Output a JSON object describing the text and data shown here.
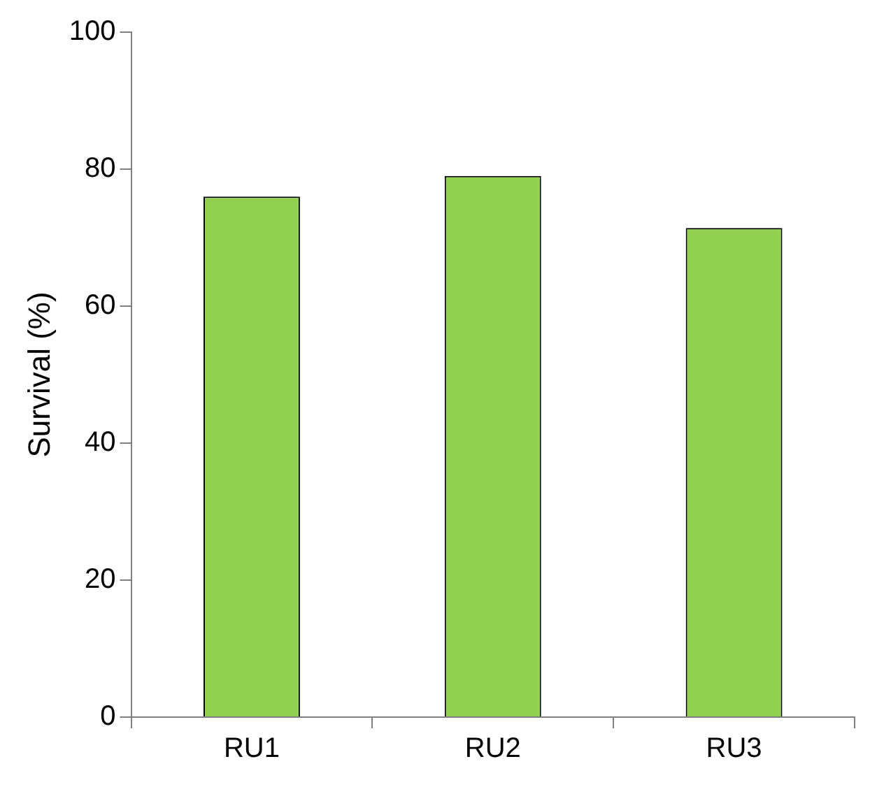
{
  "chart_data": {
    "type": "bar",
    "ylabel": "Survival (%)",
    "categories": [
      "RU1",
      "RU2",
      "RU3"
    ],
    "values": [
      76,
      79,
      71.4
    ],
    "color": "#92d050",
    "ylim": [
      0,
      100
    ],
    "yticks": [
      0,
      20,
      40,
      60,
      80,
      100
    ],
    "grid": false,
    "legend": false
  }
}
